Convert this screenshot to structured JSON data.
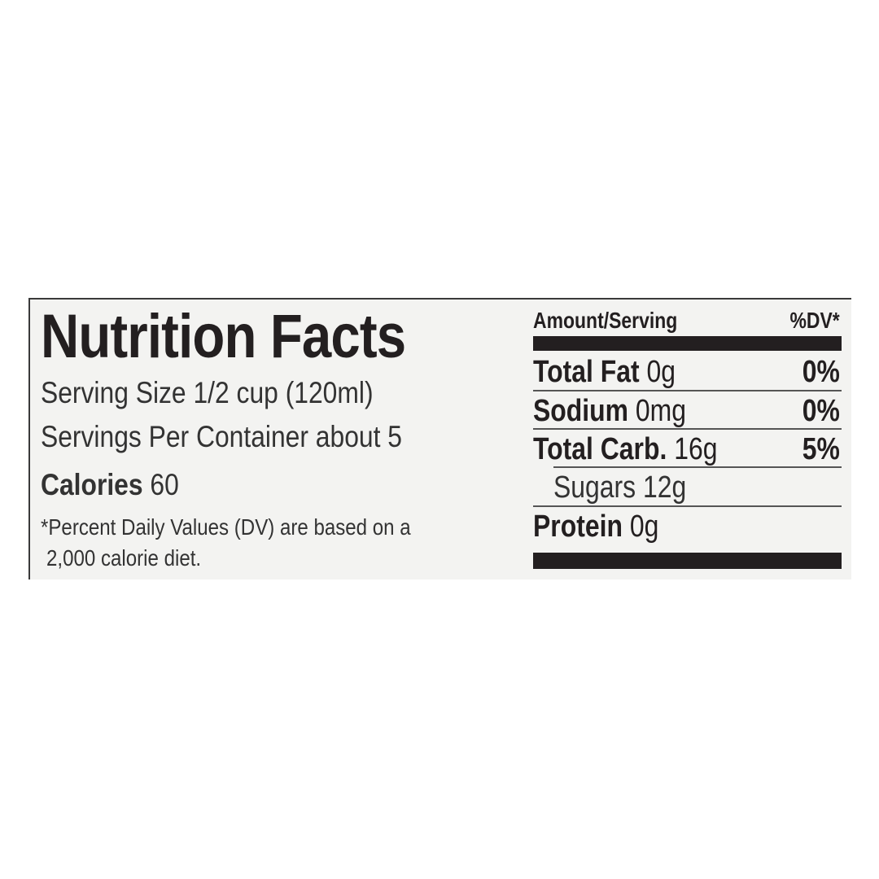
{
  "title": "Nutrition Facts",
  "serving_size": "Serving Size 1/2 cup (120ml)",
  "servings_per_container": "Servings Per Container about 5",
  "calories": {
    "label": "Calories",
    "value": "60"
  },
  "footnote": {
    "line1": "*Percent Daily Values (DV) are based on a",
    "line2": "2,000 calorie diet."
  },
  "table": {
    "header_amount": "Amount/Serving",
    "header_dv": "%DV*",
    "rows": [
      {
        "label": "Total Fat",
        "amount": "0g",
        "dv": "0%"
      },
      {
        "label": "Sodium",
        "amount": "0mg",
        "dv": "0%"
      },
      {
        "label": "Total Carb.",
        "amount": "16g",
        "dv": "5%"
      },
      {
        "label": "Sugars",
        "amount": "12g",
        "dv": ""
      },
      {
        "label": "Protein",
        "amount": "0g",
        "dv": ""
      }
    ]
  }
}
